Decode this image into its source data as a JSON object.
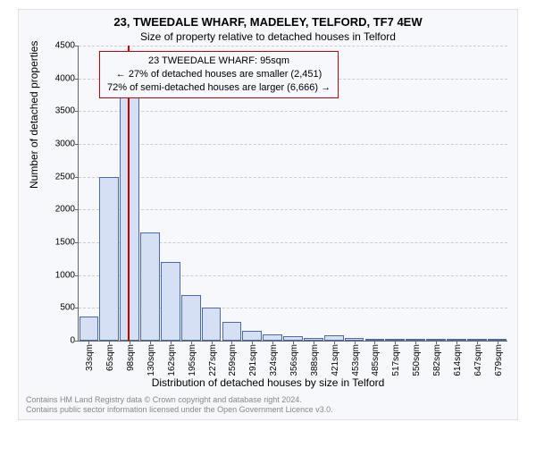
{
  "title_line1": "23, TWEEDALE WHARF, MADELEY, TELFORD, TF7 4EW",
  "title_line2": "Size of property relative to detached houses in Telford",
  "legend": {
    "line1": "23 TWEEDALE WHARF: 95sqm",
    "line2": "← 27% of detached houses are smaller (2,451)",
    "line3": "72% of semi-detached houses are larger (6,666) →",
    "border_color": "#c00000"
  },
  "chart": {
    "type": "histogram",
    "ylabel": "Number of detached properties",
    "xlabel": "Distribution of detached houses by size in Telford",
    "ylim": [
      0,
      4500
    ],
    "ytick_step": 500,
    "yticks": [
      0,
      500,
      1000,
      1500,
      2000,
      2500,
      3000,
      3500,
      4000,
      4500
    ],
    "xticks": [
      "33sqm",
      "65sqm",
      "98sqm",
      "130sqm",
      "162sqm",
      "195sqm",
      "227sqm",
      "259sqm",
      "291sqm",
      "324sqm",
      "356sqm",
      "388sqm",
      "421sqm",
      "453sqm",
      "485sqm",
      "517sqm",
      "550sqm",
      "582sqm",
      "614sqm",
      "647sqm",
      "679sqm"
    ],
    "bars": [
      370,
      2500,
      3850,
      1650,
      1200,
      700,
      500,
      280,
      150,
      100,
      70,
      40,
      80,
      40,
      10,
      10,
      5,
      5,
      5,
      5,
      5
    ],
    "bar_fill": "#d6e0f5",
    "bar_stroke": "#4a6aa8",
    "grid_color": "#cccccc",
    "background": "#f7f8fb",
    "reference_line_x": 95,
    "reference_line_color": "#c00000",
    "x_domain": [
      17,
      695
    ]
  },
  "footer": {
    "line1": "Contains HM Land Registry data © Crown copyright and database right 2024.",
    "line2": "Contains public sector information licensed under the Open Government Licence v3.0."
  }
}
